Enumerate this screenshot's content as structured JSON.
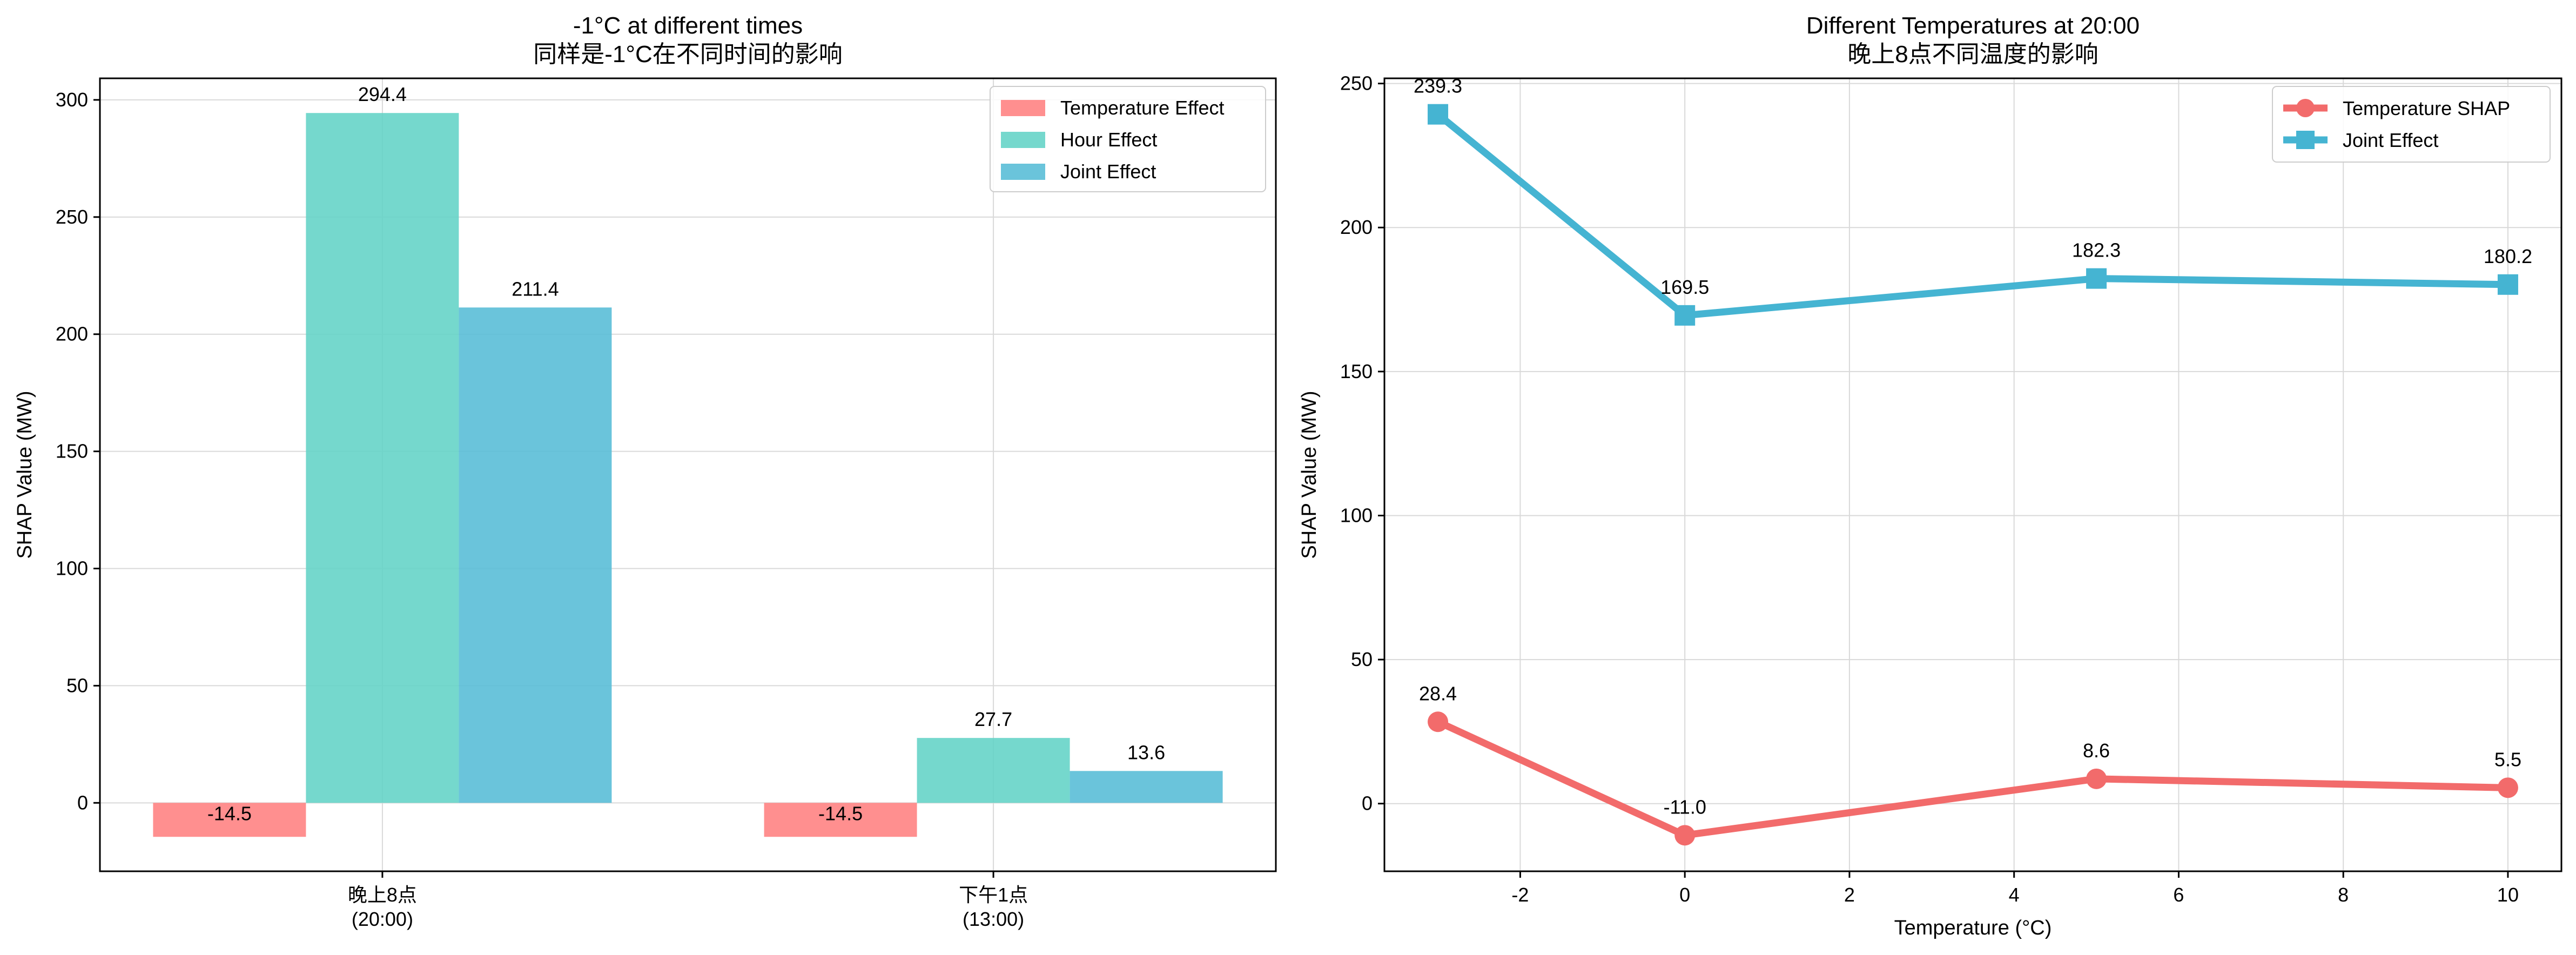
{
  "chart_data": [
    {
      "type": "bar",
      "title": "-1°C at different times",
      "subtitle": "同样是-1°C在不同时间的影响",
      "xlabel": "",
      "ylabel": "SHAP Value (MW)",
      "categories": [
        "晚上8点\n(20:00)",
        "下午1点\n(13:00)"
      ],
      "series": [
        {
          "name": "Temperature Effect",
          "color": "#ff7f7f",
          "values": [
            -14.5,
            -14.5
          ],
          "labels": [
            "-14.5",
            "-14.5"
          ]
        },
        {
          "name": "Hour Effect",
          "color": "#62d3c6",
          "values": [
            294.4,
            27.7
          ],
          "labels": [
            "294.4",
            "27.7"
          ]
        },
        {
          "name": "Joint Effect",
          "color": "#55bcd6",
          "values": [
            211.4,
            13.6
          ],
          "labels": [
            "211.4",
            "13.6"
          ]
        }
      ],
      "ylim": [
        -29.2,
        309.2
      ],
      "yticks": [
        0,
        50,
        100,
        150,
        200,
        250,
        300
      ],
      "grid": true,
      "legend_position": "top-right"
    },
    {
      "type": "line",
      "title": "Different Temperatures at 20:00",
      "subtitle": "晚上8点不同温度的影响",
      "xlabel": "Temperature (°C)",
      "ylabel": "SHAP Value (MW)",
      "x": [
        -3,
        0,
        5,
        10
      ],
      "series": [
        {
          "name": "Temperature SHAP",
          "color": "#f26b6b",
          "marker": "circle",
          "values": [
            28.4,
            -11.0,
            8.6,
            5.5
          ],
          "labels": [
            "28.4",
            "-11.0",
            "8.6",
            "5.5"
          ]
        },
        {
          "name": "Joint Effect",
          "color": "#45b4d2",
          "marker": "square",
          "values": [
            239.3,
            169.5,
            182.3,
            180.2
          ],
          "labels": [
            "239.3",
            "169.5",
            "182.3",
            "180.2"
          ]
        }
      ],
      "xlim": [
        -3.65,
        10.65
      ],
      "ylim": [
        -23.5,
        251.8
      ],
      "xticks": [
        -2,
        0,
        2,
        4,
        6,
        8,
        10
      ],
      "yticks": [
        0,
        50,
        100,
        150,
        200,
        250
      ],
      "grid": true,
      "legend_position": "top-right"
    }
  ]
}
